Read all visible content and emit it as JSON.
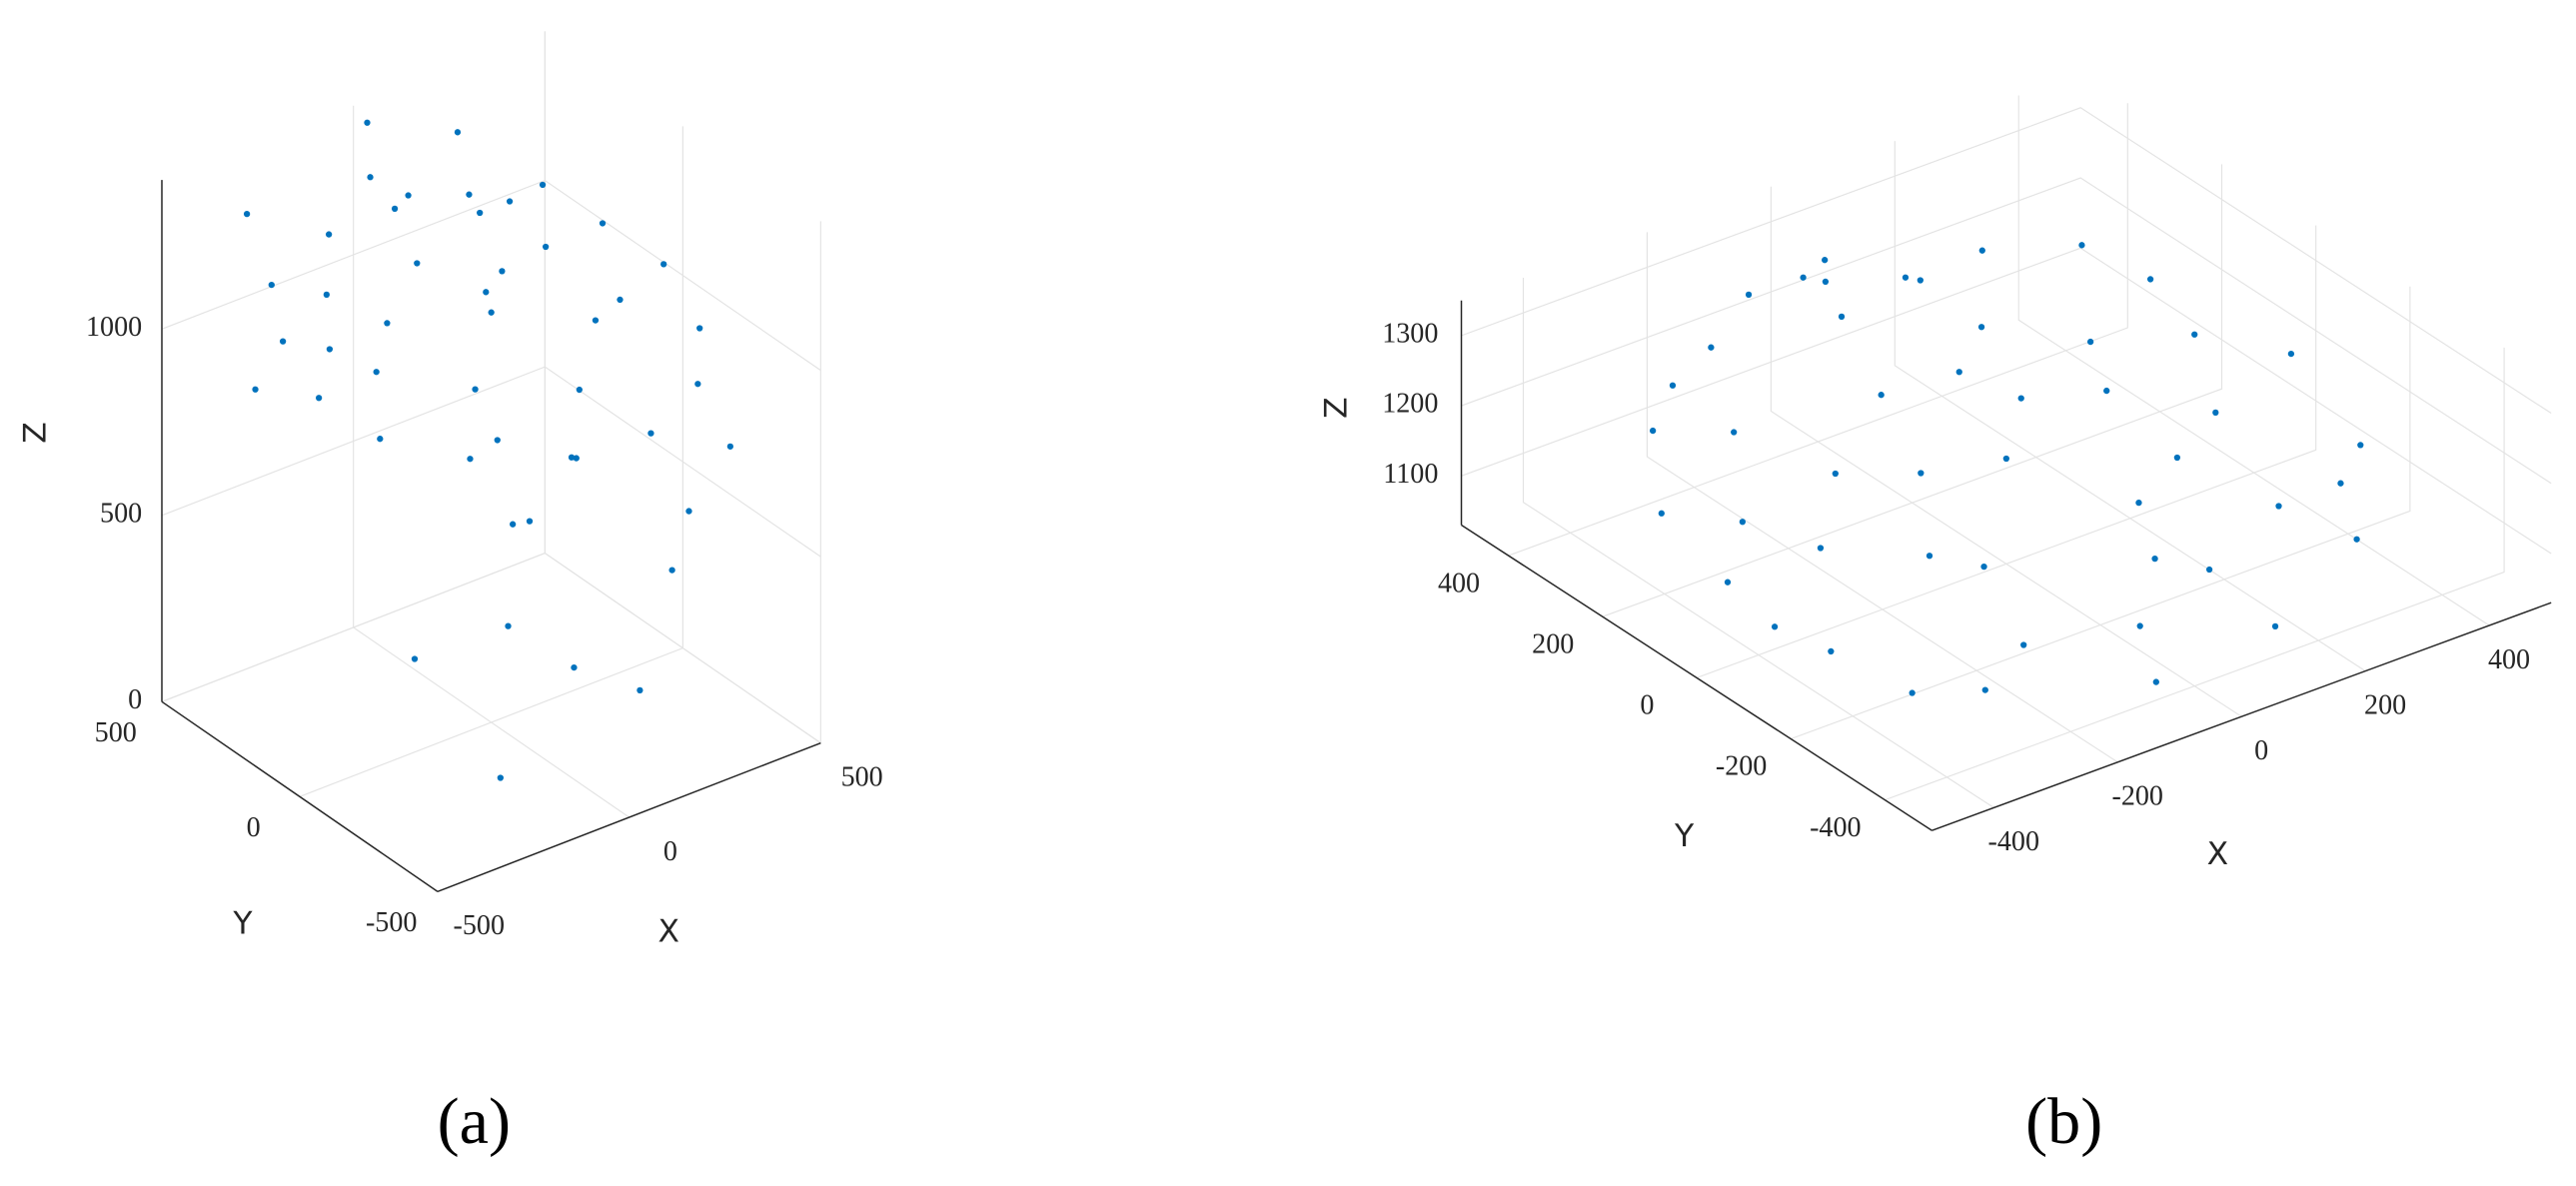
{
  "chart_data": [
    {
      "type": "scatter3d",
      "caption": "(a)",
      "xlabel": "X",
      "ylabel": "Y",
      "zlabel": "Z",
      "color": "#0072BD",
      "grid": true,
      "xlim": [
        -500,
        500
      ],
      "ylim": [
        -500,
        500
      ],
      "zlim": [
        0,
        1400
      ],
      "xticks": [
        -500,
        0,
        500
      ],
      "yticks": [
        -500,
        0,
        500
      ],
      "zticks": [
        0,
        500,
        1000
      ],
      "x": [
        -450,
        -400,
        -300,
        -100,
        100,
        300,
        420,
        450,
        400,
        280,
        100,
        -100,
        -300,
        -420,
        -200,
        -50,
        100,
        200,
        0,
        -150,
        150,
        -250,
        250,
        50,
        -300,
        300,
        0,
        -350,
        350,
        -200,
        200,
        -100,
        50,
        0,
        -350,
        150,
        100,
        300,
        -100,
        0,
        200,
        -200,
        400,
        -300,
        100,
        -400,
        300,
        -50
      ],
      "y": [
        0,
        200,
        380,
        450,
        440,
        350,
        180,
        0,
        -200,
        -360,
        -440,
        -430,
        -340,
        -180,
        100,
        200,
        100,
        -100,
        0,
        -150,
        250,
        250,
        150,
        -250,
        0,
        -50,
        350,
        100,
        300,
        -300,
        400,
        300,
        150,
        450,
        400,
        -100,
        0,
        -300,
        -200,
        -300,
        200,
        0,
        -100,
        -450,
        -400,
        300,
        -450,
        -50
      ],
      "z": [
        1050,
        1080,
        1100,
        1120,
        1150,
        1100,
        1080,
        1050,
        1000,
        980,
        960,
        970,
        1000,
        1020,
        1100,
        1150,
        1120,
        1050,
        1100,
        1030,
        1180,
        1120,
        1100,
        1000,
        1060,
        1040,
        1200,
        1090,
        1150,
        990,
        1300,
        1350,
        1320,
        1380,
        1300,
        700,
        500,
        600,
        400,
        300,
        350,
        250,
        300,
        200,
        250,
        900,
        850,
        1200
      ]
    },
    {
      "type": "scatter3d",
      "caption": "(b)",
      "xlabel": "X",
      "ylabel": "Y",
      "zlabel": "Z",
      "color": "#0072BD",
      "grid": true,
      "xlim": [
        -500,
        500
      ],
      "ylim": [
        -500,
        500
      ],
      "zlim": [
        1030,
        1350
      ],
      "xticks": [
        -400,
        -200,
        0,
        200,
        400
      ],
      "yticks": [
        -400,
        -200,
        0,
        200,
        400
      ],
      "zticks": [
        1100,
        1200,
        1300
      ],
      "x": [
        -450,
        -420,
        -320,
        -150,
        50,
        250,
        400,
        460,
        420,
        300,
        100,
        -100,
        -300,
        -420,
        -200,
        -50,
        100,
        200,
        0,
        -150,
        150,
        -250,
        250,
        50,
        -300,
        300,
        0,
        -350,
        350,
        -200,
        100,
        -100,
        200,
        -50,
        350,
        -380,
        150,
        -250,
        0,
        -100,
        -50,
        50,
        -150,
        380,
        -450,
        250,
        -200,
        100
      ],
      "y": [
        0,
        180,
        330,
        430,
        450,
        380,
        220,
        0,
        -200,
        -350,
        -440,
        -450,
        -350,
        -180,
        100,
        200,
        100,
        -100,
        0,
        -150,
        250,
        250,
        150,
        -250,
        0,
        -50,
        350,
        100,
        300,
        -300,
        -150,
        50,
        50,
        -350,
        -250,
        -300,
        380,
        380,
        100,
        300,
        320,
        280,
        350,
        100,
        -100,
        -250,
        -100,
        -300
      ],
      "z": [
        1150,
        1160,
        1180,
        1200,
        1220,
        1230,
        1210,
        1180,
        1150,
        1120,
        1100,
        1090,
        1100,
        1120,
        1180,
        1200,
        1190,
        1160,
        1180,
        1140,
        1210,
        1190,
        1200,
        1130,
        1150,
        1170,
        1230,
        1160,
        1240,
        1110,
        1150,
        1170,
        1190,
        1110,
        1140,
        1100,
        1220,
        1200,
        1260,
        1340,
        1340,
        1300,
        1310,
        1190,
        1130,
        1140,
        1150,
        1120
      ]
    }
  ]
}
